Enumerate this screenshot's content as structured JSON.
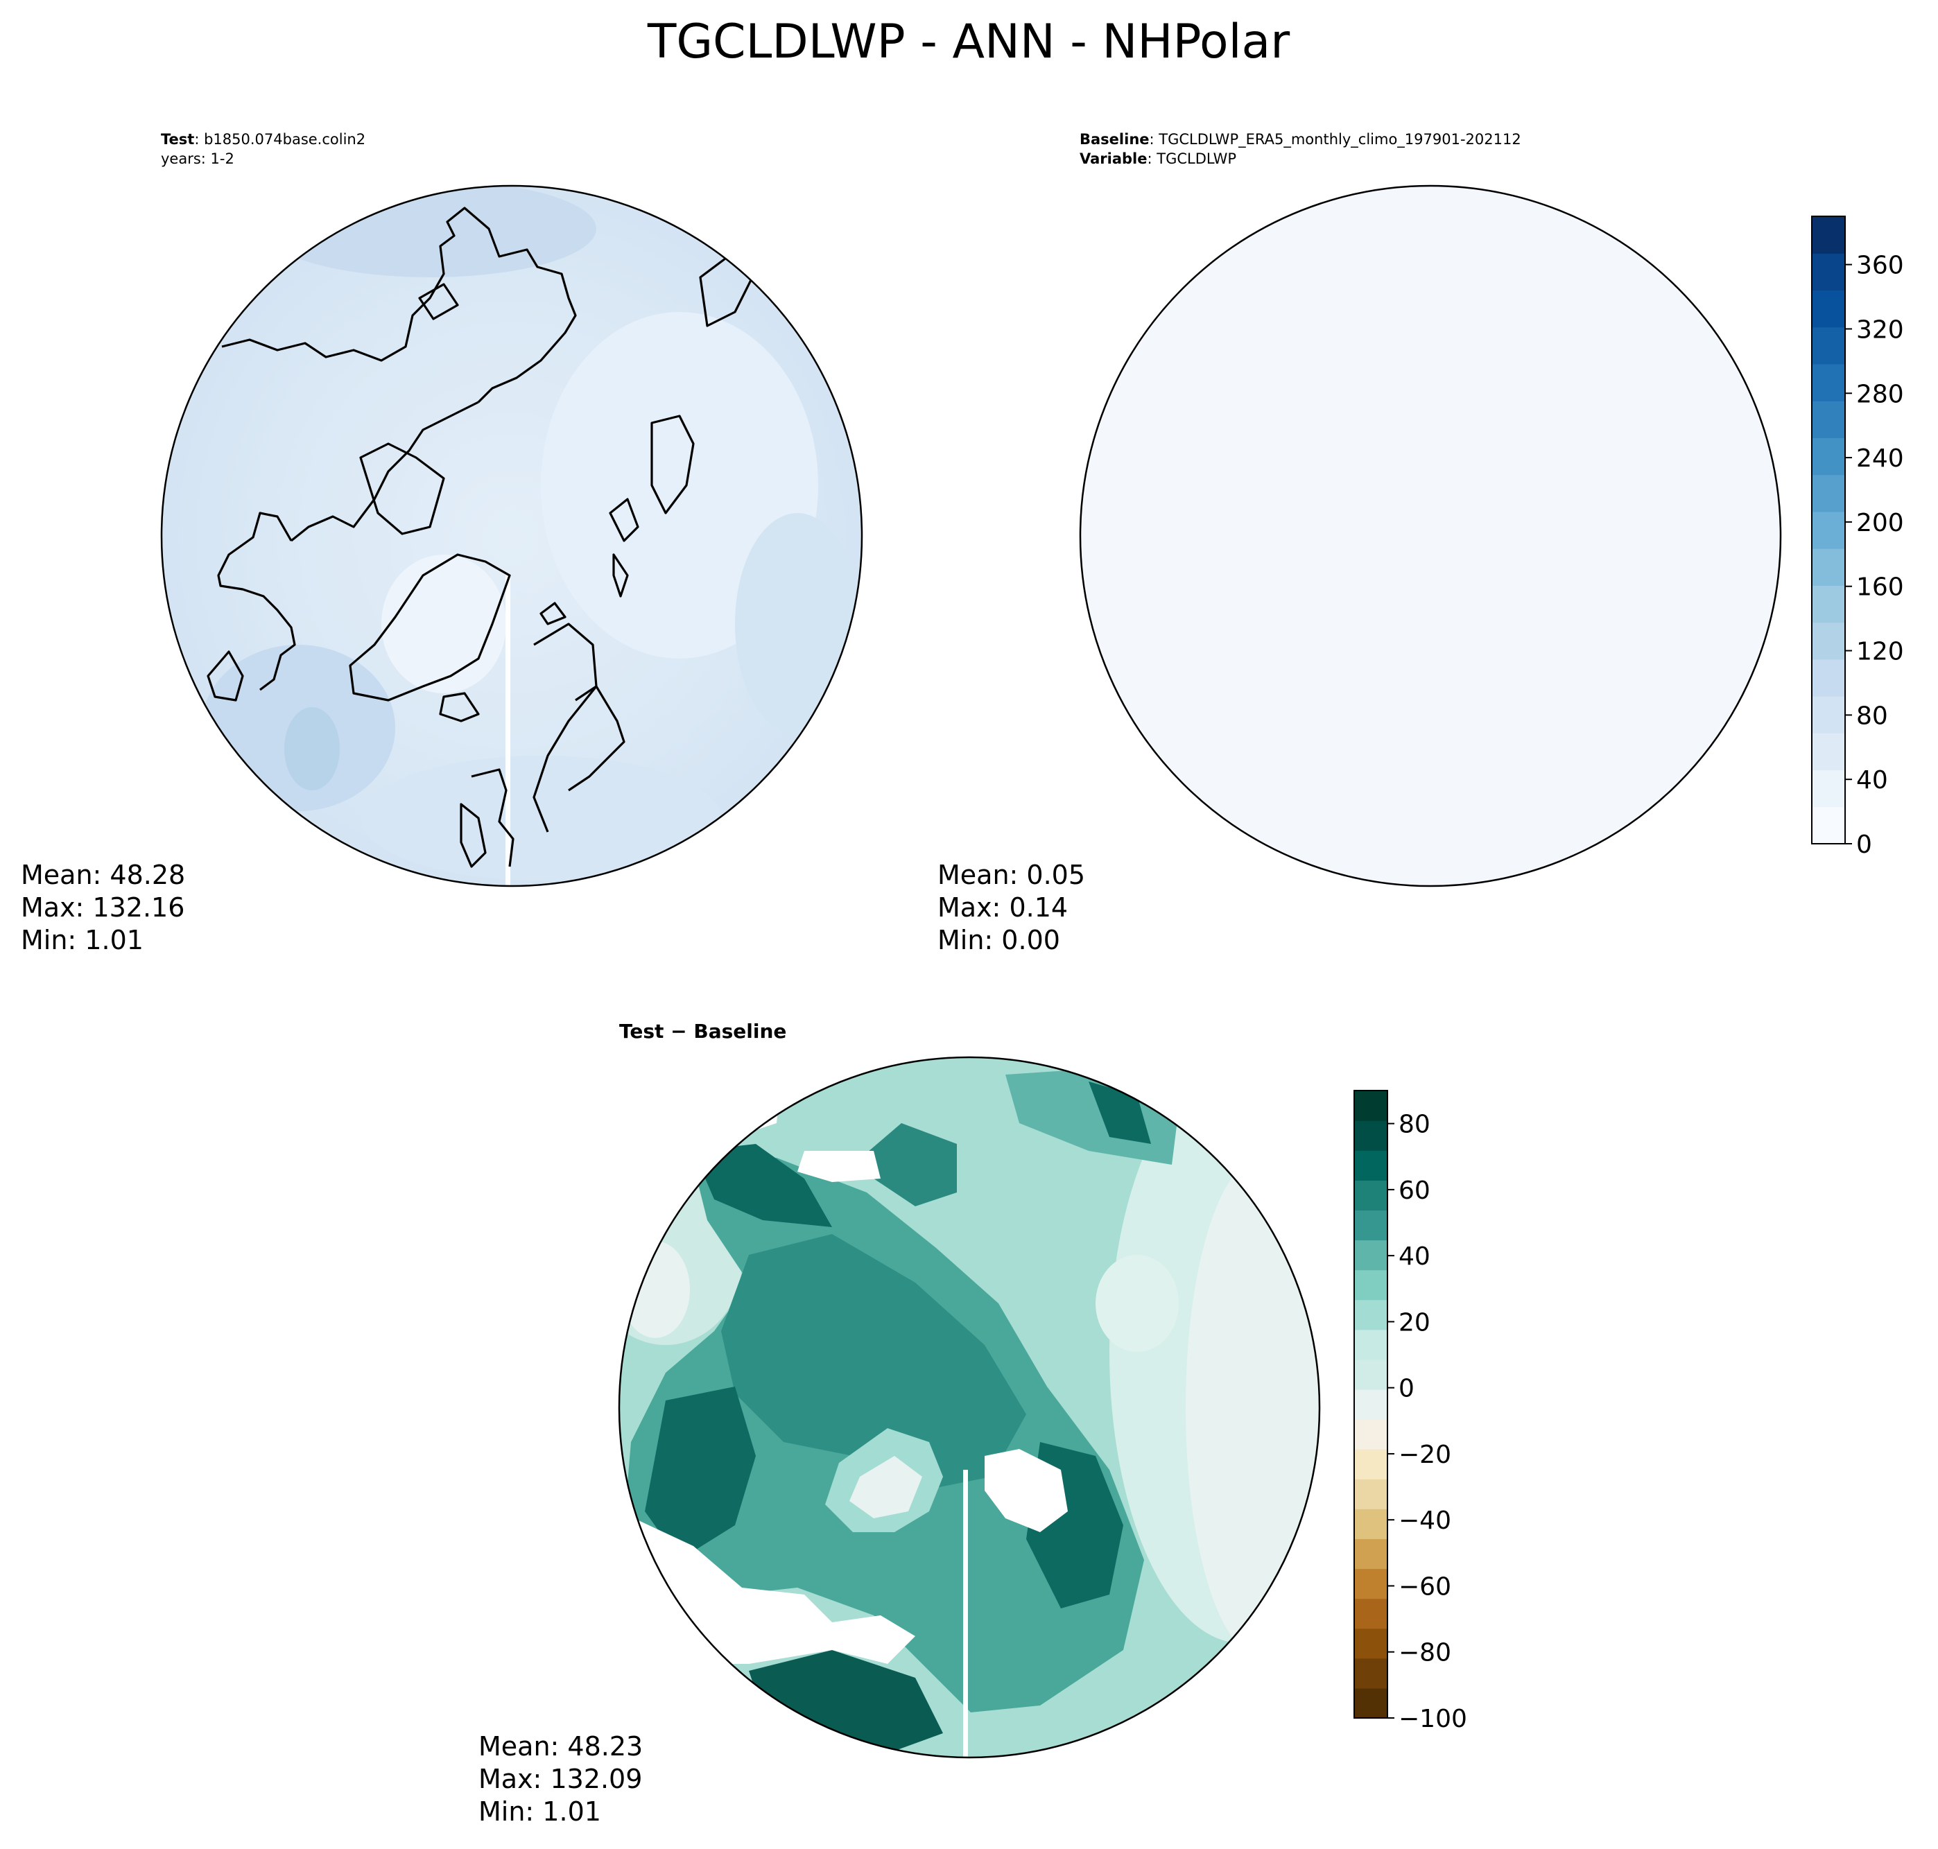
{
  "figure": {
    "title": "TGCLDLWP - ANN - NHPolar"
  },
  "panels": {
    "test": {
      "label_key": "Test",
      "label_value": "b1850.074base.colin2",
      "line2": "years: 1-2",
      "stats": {
        "mean": "Mean: 48.28",
        "max": "Max: 132.16",
        "min": "Min:  1.01"
      }
    },
    "baseline": {
      "label_key": "Baseline",
      "label_value": "TGCLDLWP_ERA5_monthly_climo_197901-202112",
      "var_key": "Variable",
      "var_value": "TGCLDLWP",
      "stats": {
        "mean": "Mean:  0.05",
        "max": "Max:  0.14",
        "min": "Min:  0.00"
      }
    },
    "diff": {
      "title": "Test − Baseline",
      "stats": {
        "mean": "Mean: 48.23",
        "max": "Max: 132.09",
        "min": "Min:  1.01"
      }
    }
  },
  "chart_data": [
    {
      "type": "heatmap",
      "panel": "test",
      "projection": "north-polar-stereographic",
      "colormap": "Blues",
      "colorbar_shared_with": "baseline",
      "stats": {
        "mean": 48.28,
        "max": 132.16,
        "min": 1.01
      }
    },
    {
      "type": "heatmap",
      "panel": "baseline",
      "projection": "north-polar-stereographic",
      "colormap": "Blues",
      "colorbar": {
        "ticks": [
          "0",
          "40",
          "80",
          "120",
          "160",
          "200",
          "240",
          "280",
          "320",
          "360"
        ],
        "tick_values": [
          0,
          40,
          80,
          120,
          160,
          200,
          240,
          280,
          320,
          360
        ],
        "range": [
          0,
          390
        ],
        "colors": [
          "#f7fbff",
          "#ebf3fb",
          "#deebf7",
          "#d2e3f3",
          "#c6dbef",
          "#b2d2e8",
          "#9ecae1",
          "#84bcdb",
          "#6baed6",
          "#57a0ce",
          "#4292c6",
          "#3181bd",
          "#2171b5",
          "#1461a8",
          "#08519c",
          "#08458a",
          "#08306b"
        ]
      },
      "stats": {
        "mean": 0.05,
        "max": 0.14,
        "min": 0.0
      }
    },
    {
      "type": "heatmap",
      "panel": "diff",
      "projection": "north-polar-stereographic",
      "colormap": "BrBG",
      "colorbar": {
        "ticks": [
          "80",
          "60",
          "40",
          "20",
          "0",
          "−20",
          "−40",
          "−60",
          "−80",
          "−100"
        ],
        "tick_values": [
          80,
          60,
          40,
          20,
          0,
          -20,
          -40,
          -60,
          -80,
          -100
        ],
        "range": [
          -100,
          90
        ],
        "colors": [
          "#543005",
          "#6f4008",
          "#8c510a",
          "#a9661b",
          "#bf812d",
          "#d0a150",
          "#dfc27d",
          "#ebd6a5",
          "#f6e8c3",
          "#f5f0e3",
          "#e8f2f0",
          "#d1ece7",
          "#c7eae5",
          "#a3dcd2",
          "#80cdc1",
          "#5fb5aa",
          "#35978f",
          "#1f8278",
          "#01665e",
          "#004e45",
          "#003c30"
        ]
      },
      "stats": {
        "mean": 48.23,
        "max": 132.09,
        "min": 1.01
      }
    }
  ]
}
